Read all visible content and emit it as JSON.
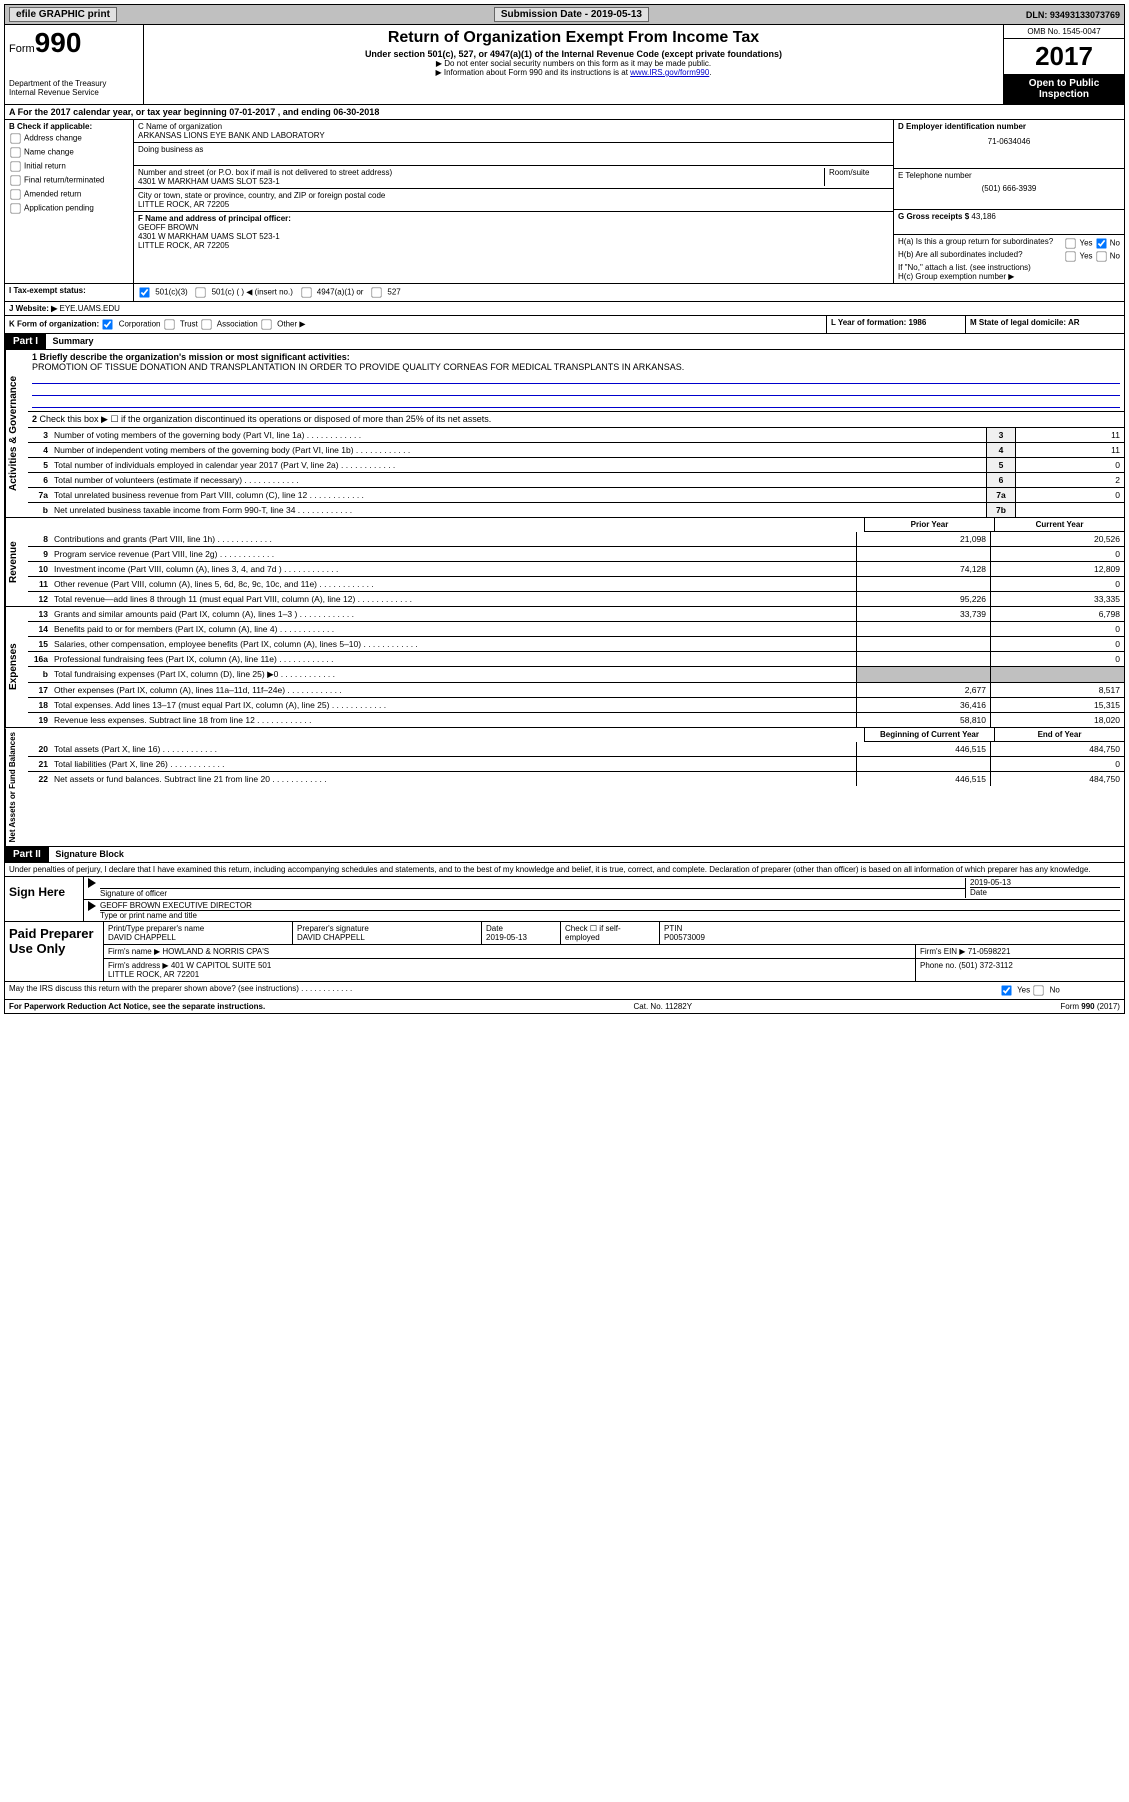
{
  "topbar": {
    "efile": "efile GRAPHIC print",
    "submission": "Submission Date - 2019-05-13",
    "dln": "DLN: 93493133073769"
  },
  "header": {
    "form": "Form",
    "formnum": "990",
    "dept": "Department of the Treasury\nInternal Revenue Service",
    "title": "Return of Organization Exempt From Income Tax",
    "subtitle": "Under section 501(c), 527, or 4947(a)(1) of the Internal Revenue Code (except private foundations)",
    "note1": "▶ Do not enter social security numbers on this form as it may be made public.",
    "note2": "▶ Information about Form 990 and its instructions is at ",
    "link": "www.IRS.gov/form990",
    "omb": "OMB No. 1545-0047",
    "year": "2017",
    "open": "Open to Public Inspection"
  },
  "sectionA": "A  For the 2017 calendar year, or tax year beginning 07-01-2017   , and ending 06-30-2018",
  "colB": {
    "title": "B Check if applicable:",
    "addr": "Address change",
    "name": "Name change",
    "init": "Initial return",
    "final": "Final return/terminated",
    "amend": "Amended return",
    "app": "Application pending"
  },
  "colC": {
    "nameLabel": "C Name of organization",
    "org": "ARKANSAS LIONS EYE BANK AND LABORATORY",
    "dba": "Doing business as",
    "addrLabel": "Number and street (or P.O. box if mail is not delivered to street address)",
    "room": "Room/suite",
    "addr": "4301 W MARKHAM UAMS SLOT 523-1",
    "cityLabel": "City or town, state or province, country, and ZIP or foreign postal code",
    "city": "LITTLE ROCK, AR  72205",
    "fLabel": "F Name and address of principal officer:",
    "officer": "GEOFF BROWN\n4301 W MARKHAM UAMS SLOT 523-1\nLITTLE ROCK, AR  72205"
  },
  "colD": {
    "einLabel": "D Employer identification number",
    "ein": "71-0634046",
    "telLabel": "E Telephone number",
    "tel": "(501) 666-3939",
    "grossLabel": "G Gross receipts $",
    "gross": "43,186"
  },
  "colH": {
    "ha": "H(a)  Is this a group return for subordinates?",
    "hb": "H(b)  Are all subordinates included?",
    "hbnote": "If \"No,\" attach a list. (see instructions)",
    "hc": "H(c)  Group exemption number ▶"
  },
  "rowI": {
    "label": "I  Tax-exempt status:",
    "c3": "501(c)(3)",
    "c": "501(c) (  ) ◀ (insert no.)",
    "a1": "4947(a)(1) or",
    "s527": "527"
  },
  "rowJ": {
    "label": "J  Website: ▶",
    "val": "EYE.UAMS.EDU"
  },
  "rowK": {
    "label": "K Form of organization:",
    "corp": "Corporation",
    "trust": "Trust",
    "assoc": "Association",
    "other": "Other ▶",
    "lyear": "L Year of formation: 1986",
    "mstate": "M State of legal domicile: AR"
  },
  "part1": {
    "header": "Part I",
    "title": "Summary",
    "q1": "1 Briefly describe the organization's mission or most significant activities:",
    "mission": "PROMOTION OF TISSUE DONATION AND TRANSPLANTATION IN ORDER TO PROVIDE QUALITY CORNEAS FOR MEDICAL TRANSPLANTS IN ARKANSAS.",
    "q2": "Check this box ▶ ☐ if the organization discontinued its operations or disposed of more than 25% of its net assets.",
    "labels": {
      "activities": "Activities & Governance",
      "revenue": "Revenue",
      "expenses": "Expenses",
      "netassets": "Net Assets or Fund Balances"
    },
    "lines": [
      {
        "n": "3",
        "d": "Number of voting members of the governing body (Part VI, line 1a)",
        "b": "3",
        "v": "11"
      },
      {
        "n": "4",
        "d": "Number of independent voting members of the governing body (Part VI, line 1b)",
        "b": "4",
        "v": "11"
      },
      {
        "n": "5",
        "d": "Total number of individuals employed in calendar year 2017 (Part V, line 2a)",
        "b": "5",
        "v": "0"
      },
      {
        "n": "6",
        "d": "Total number of volunteers (estimate if necessary)",
        "b": "6",
        "v": "2"
      },
      {
        "n": "7a",
        "d": "Total unrelated business revenue from Part VIII, column (C), line 12",
        "b": "7a",
        "v": "0"
      },
      {
        "n": "b",
        "d": "Net unrelated business taxable income from Form 990-T, line 34",
        "b": "7b",
        "v": ""
      }
    ],
    "colheaders": {
      "prior": "Prior Year",
      "current": "Current Year"
    },
    "revenue": [
      {
        "n": "8",
        "d": "Contributions and grants (Part VIII, line 1h)",
        "p": "21,098",
        "c": "20,526"
      },
      {
        "n": "9",
        "d": "Program service revenue (Part VIII, line 2g)",
        "p": "",
        "c": "0"
      },
      {
        "n": "10",
        "d": "Investment income (Part VIII, column (A), lines 3, 4, and 7d )",
        "p": "74,128",
        "c": "12,809"
      },
      {
        "n": "11",
        "d": "Other revenue (Part VIII, column (A), lines 5, 6d, 8c, 9c, 10c, and 11e)",
        "p": "",
        "c": "0"
      },
      {
        "n": "12",
        "d": "Total revenue—add lines 8 through 11 (must equal Part VIII, column (A), line 12)",
        "p": "95,226",
        "c": "33,335"
      }
    ],
    "expenses": [
      {
        "n": "13",
        "d": "Grants and similar amounts paid (Part IX, column (A), lines 1–3 )",
        "p": "33,739",
        "c": "6,798"
      },
      {
        "n": "14",
        "d": "Benefits paid to or for members (Part IX, column (A), line 4)",
        "p": "",
        "c": "0"
      },
      {
        "n": "15",
        "d": "Salaries, other compensation, employee benefits (Part IX, column (A), lines 5–10)",
        "p": "",
        "c": "0"
      },
      {
        "n": "16a",
        "d": "Professional fundraising fees (Part IX, column (A), line 11e)",
        "p": "",
        "c": "0"
      },
      {
        "n": "b",
        "d": "Total fundraising expenses (Part IX, column (D), line 25) ▶0",
        "p": "shade",
        "c": "shade"
      },
      {
        "n": "17",
        "d": "Other expenses (Part IX, column (A), lines 11a–11d, 11f–24e)",
        "p": "2,677",
        "c": "8,517"
      },
      {
        "n": "18",
        "d": "Total expenses. Add lines 13–17 (must equal Part IX, column (A), line 25)",
        "p": "36,416",
        "c": "15,315"
      },
      {
        "n": "19",
        "d": "Revenue less expenses. Subtract line 18 from line 12",
        "p": "58,810",
        "c": "18,020"
      }
    ],
    "netheaders": {
      "begin": "Beginning of Current Year",
      "end": "End of Year"
    },
    "net": [
      {
        "n": "20",
        "d": "Total assets (Part X, line 16)",
        "p": "446,515",
        "c": "484,750"
      },
      {
        "n": "21",
        "d": "Total liabilities (Part X, line 26)",
        "p": "",
        "c": "0"
      },
      {
        "n": "22",
        "d": "Net assets or fund balances. Subtract line 21 from line 20",
        "p": "446,515",
        "c": "484,750"
      }
    ]
  },
  "part2": {
    "header": "Part II",
    "title": "Signature Block",
    "decl": "Under penalties of perjury, I declare that I have examined this return, including accompanying schedules and statements, and to the best of my knowledge and belief, it is true, correct, and complete. Declaration of preparer (other than officer) is based on all information of which preparer has any knowledge.",
    "sign": "Sign Here",
    "sigOff": "Signature of officer",
    "date": "Date",
    "dateval": "2019-05-13",
    "officer": "GEOFF BROWN EXECUTIVE DIRECTOR",
    "typeprint": "Type or print name and title",
    "paid": "Paid Preparer Use Only",
    "prepName": "Print/Type preparer's name",
    "prepNameVal": "DAVID CHAPPELL",
    "prepSig": "Preparer's signature",
    "prepSigVal": "DAVID CHAPPELL",
    "prepDate": "Date",
    "prepDateVal": "2019-05-13",
    "check": "Check ☐ if self-employed",
    "ptin": "PTIN",
    "ptinVal": "P00573009",
    "firm": "Firm's name    ▶",
    "firmVal": "HOWLAND & NORRIS CPA'S",
    "firmEin": "Firm's EIN ▶",
    "firmEinVal": "71-0598221",
    "firmAddr": "Firm's address ▶",
    "firmAddrVal": "401 W CAPITOL SUITE 501\nLITTLE ROCK, AR  72201",
    "phone": "Phone no.",
    "phoneVal": "(501) 372-3112",
    "discuss": "May the IRS discuss this return with the preparer shown above? (see instructions)",
    "paperwork": "For Paperwork Reduction Act Notice, see the separate instructions.",
    "cat": "Cat. No. 11282Y",
    "formfoot": "Form 990 (2017)"
  }
}
